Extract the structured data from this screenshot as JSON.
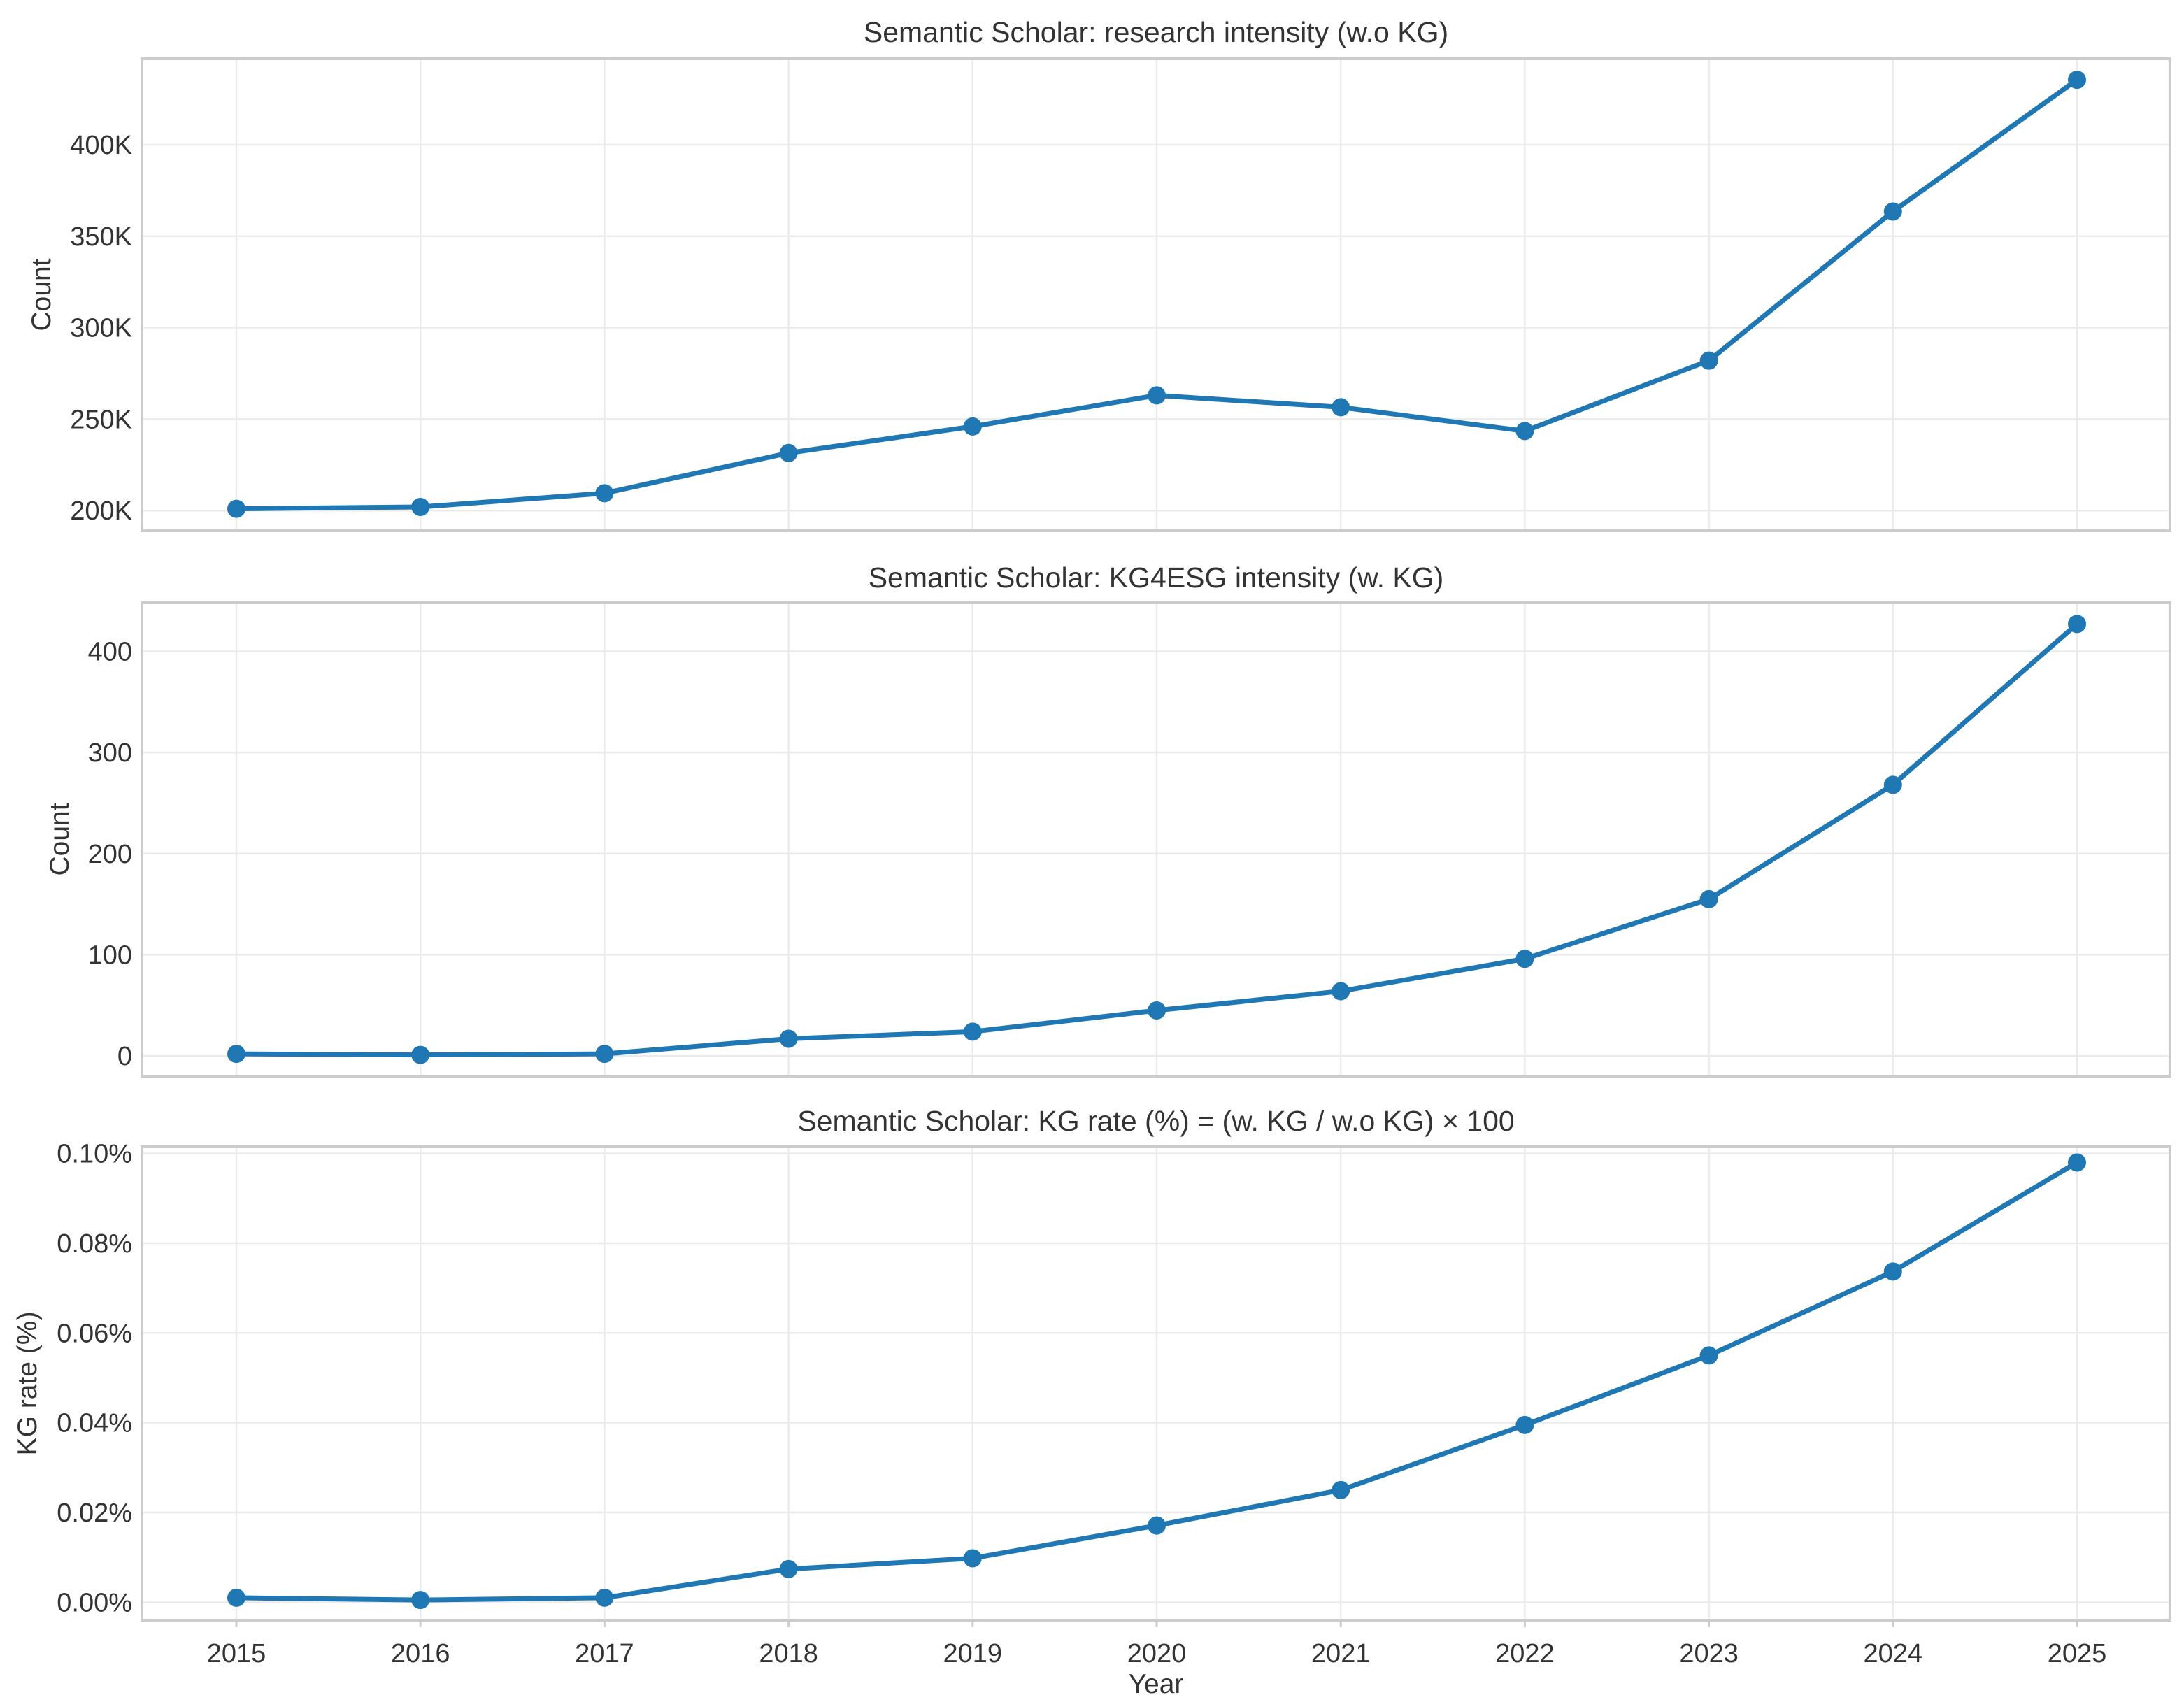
{
  "style": {
    "series_color": "#1f77b4",
    "grid_color": "#ebebeb",
    "frame_color": "#cccccc",
    "text_color": "#333333"
  },
  "chart_data": [
    {
      "type": "line",
      "title": "Semantic Scholar: research intensity (w.o KG)",
      "xlabel": "",
      "ylabel": "Count",
      "x": [
        2015,
        2016,
        2017,
        2018,
        2019,
        2020,
        2021,
        2022,
        2023,
        2024,
        2025
      ],
      "series": [
        {
          "name": "research intensity (w.o KG)",
          "values": [
            201000,
            202000,
            209500,
            231500,
            246000,
            263000,
            256500,
            243500,
            282000,
            363500,
            435500
          ]
        }
      ],
      "ylim": [
        189000,
        447000
      ],
      "yticks": [
        200000,
        250000,
        300000,
        350000,
        400000
      ],
      "ytick_labels": [
        "200K",
        "250K",
        "300K",
        "350K",
        "400K"
      ],
      "grid": true
    },
    {
      "type": "line",
      "title": "Semantic Scholar: KG4ESG intensity (w. KG)",
      "xlabel": "",
      "ylabel": "Count",
      "x": [
        2015,
        2016,
        2017,
        2018,
        2019,
        2020,
        2021,
        2022,
        2023,
        2024,
        2025
      ],
      "series": [
        {
          "name": "KG4ESG intensity (w. KG)",
          "values": [
            2,
            1,
            2,
            17,
            24,
            45,
            64,
            96,
            155,
            268,
            427
          ]
        }
      ],
      "ylim": [
        -20,
        448
      ],
      "yticks": [
        0,
        100,
        200,
        300,
        400
      ],
      "ytick_labels": [
        "0",
        "100",
        "200",
        "300",
        "400"
      ],
      "grid": true
    },
    {
      "type": "line",
      "title": "Semantic Scholar: KG rate (%) = (w. KG / w.o KG) × 100",
      "xlabel": "Year",
      "ylabel": "KG rate (%)",
      "x": [
        2015,
        2016,
        2017,
        2018,
        2019,
        2020,
        2021,
        2022,
        2023,
        2024,
        2025
      ],
      "series": [
        {
          "name": "KG rate (%)",
          "values": [
            0.001,
            0.0005,
            0.001,
            0.0074,
            0.0098,
            0.0171,
            0.025,
            0.0395,
            0.055,
            0.0737,
            0.098
          ]
        }
      ],
      "ylim": [
        -0.004,
        0.1015
      ],
      "yticks": [
        0.0,
        0.02,
        0.04,
        0.06,
        0.08,
        0.1
      ],
      "ytick_labels": [
        "0.00%",
        "0.02%",
        "0.04%",
        "0.06%",
        "0.08%",
        "0.10%"
      ],
      "xtick_labels": [
        "2015",
        "2016",
        "2017",
        "2018",
        "2019",
        "2020",
        "2021",
        "2022",
        "2023",
        "2024",
        "2025"
      ],
      "grid": true
    }
  ]
}
